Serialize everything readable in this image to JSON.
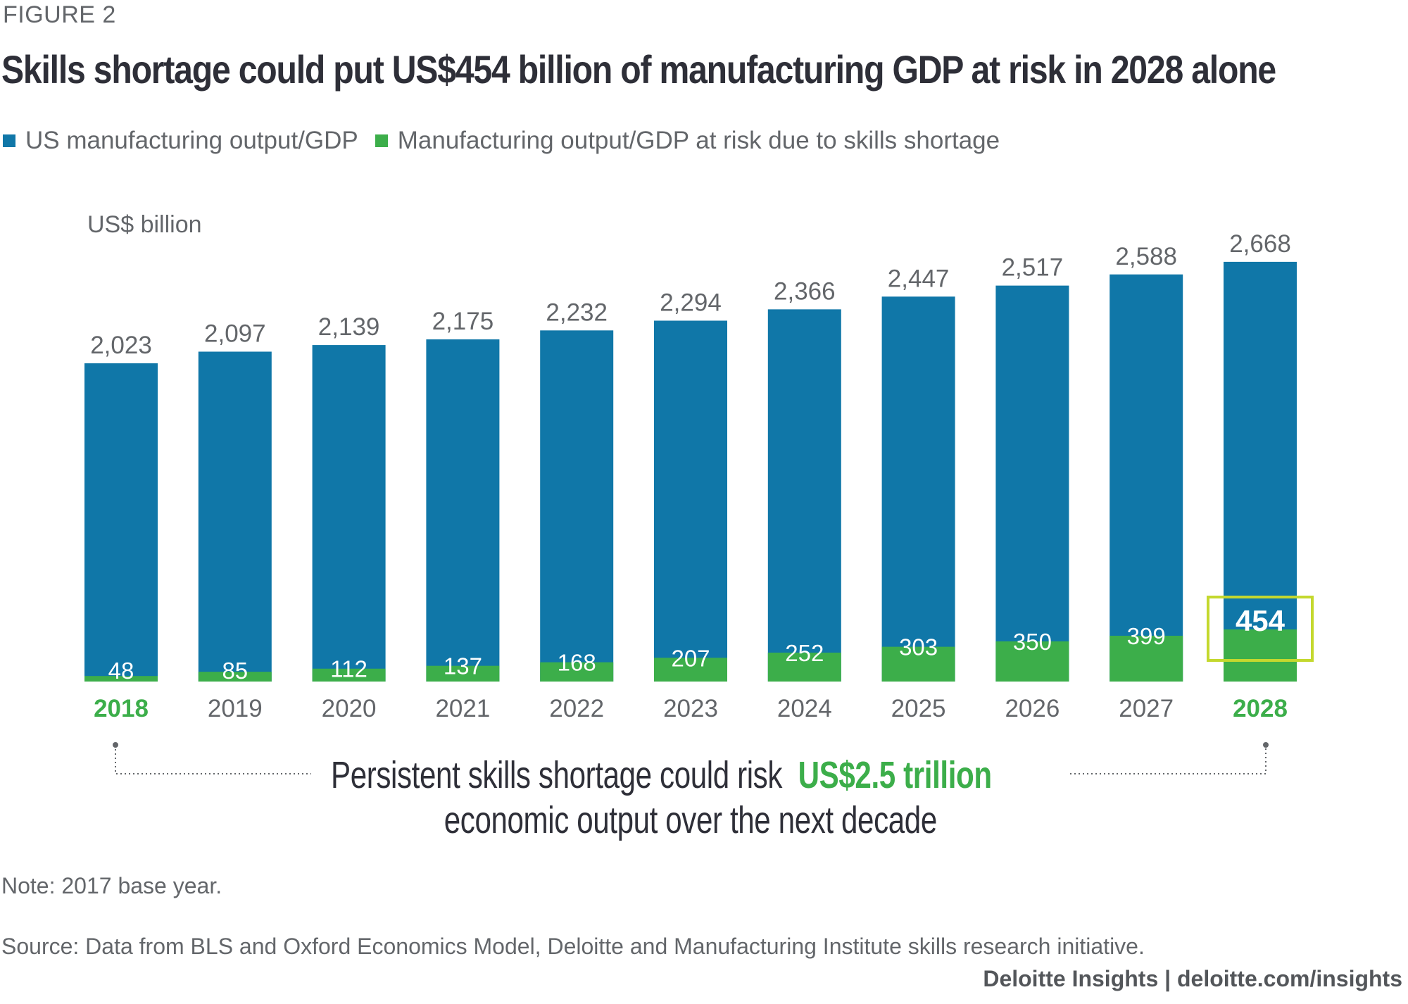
{
  "figure_label": "FIGURE 2",
  "title": "Skills shortage could put US$454 billion of manufacturing GDP at risk in 2028 alone",
  "legend": [
    {
      "label": "US manufacturing output/GDP",
      "color": "#1077a8"
    },
    {
      "label": "Manufacturing output/GDP at risk due to skills shortage",
      "color": "#3cae4a"
    }
  ],
  "colors": {
    "output": "#1077a8",
    "at_risk": "#3cae4a",
    "highlight_box": "#c4d82e",
    "highlight_text": "#3cae4a",
    "connector": "#63666a"
  },
  "chart_data": {
    "type": "bar",
    "title": "Skills shortage could put US$454 billion of manufacturing GDP at risk in 2028 alone",
    "xlabel": "",
    "ylabel": "US$ billion",
    "unit_label": "US$ billion",
    "categories": [
      "2018",
      "2019",
      "2020",
      "2021",
      "2022",
      "2023",
      "2024",
      "2025",
      "2026",
      "2027",
      "2028"
    ],
    "series": [
      {
        "name": "US manufacturing output/GDP",
        "values": [
          2023,
          2097,
          2139,
          2175,
          2232,
          2294,
          2366,
          2447,
          2517,
          2588,
          2668
        ],
        "labels": [
          "2,023",
          "2,097",
          "2,139",
          "2,175",
          "2,232",
          "2,294",
          "2,366",
          "2,447",
          "2,517",
          "2,588",
          "2,668"
        ]
      },
      {
        "name": "Manufacturing output/GDP at risk due to skills shortage",
        "values": [
          48,
          85,
          112,
          137,
          168,
          207,
          252,
          303,
          350,
          399,
          454
        ],
        "labels": [
          "48",
          "85",
          "112",
          "137",
          "168",
          "207",
          "252",
          "303",
          "350",
          "399",
          "454"
        ]
      }
    ],
    "highlighted_categories": [
      "2018",
      "2028"
    ],
    "highlighted_value": {
      "category": "2028",
      "series": "Manufacturing output/GDP at risk due to skills shortage",
      "value": 454
    },
    "ylim": [
      0,
      2668
    ],
    "grid": false,
    "legend_position": "top-left",
    "bar_mode": "overlay"
  },
  "callout": {
    "line1_prefix": "Persistent skills shortage could risk",
    "line1_accent": "US$2.5 trillion",
    "line2": "economic output over the next decade",
    "span_from": "2018",
    "span_to": "2028"
  },
  "note": "Note: 2017 base year.",
  "source": "Source: Data from BLS and Oxford Economics Model, Deloitte and Manufacturing Institute skills research initiative.",
  "credit": "Deloitte Insights | deloitte.com/insights"
}
